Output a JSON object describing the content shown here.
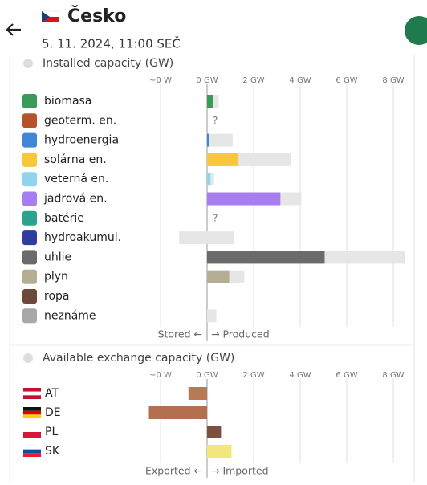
{
  "header": {
    "title": "Česko",
    "datetime": "5. 11. 2024, 11:00 SEČ"
  },
  "production": {
    "title": "Installed capacity (GW)",
    "ticks": [
      {
        "value": -2,
        "label": "~0 W"
      },
      {
        "value": 0,
        "label": "0 GW"
      },
      {
        "value": 2,
        "label": "2 GW"
      },
      {
        "value": 4,
        "label": "4 GW"
      },
      {
        "value": 6,
        "label": "6 GW"
      },
      {
        "value": 8,
        "label": "8 GW"
      }
    ],
    "rows": [
      {
        "name": "biomasa",
        "color": "#3a9a58",
        "value": 0.25,
        "capacity": 0.5
      },
      {
        "name": "geoterm. en.",
        "color": "#b5532b",
        "value": null,
        "value_label": "?"
      },
      {
        "name": "hydroenergia",
        "color": "#3f86d4",
        "value": 0.1,
        "capacity": 1.1
      },
      {
        "name": "solárna en.",
        "color": "#f6c83a",
        "value": 1.35,
        "capacity": 3.6
      },
      {
        "name": "veterná en.",
        "color": "#8fd3ec",
        "value": 0.15,
        "capacity": 0.3
      },
      {
        "name": "jadrová en.",
        "color": "#a77ef2",
        "value": 3.15,
        "capacity": 4.05
      },
      {
        "name": "batérie",
        "color": "#2ba38c",
        "value": null,
        "value_label": "?"
      },
      {
        "name": "hydroakumul.",
        "color": "#2f3d9c",
        "value": 0,
        "storage_capacity": -1.2,
        "capacity": 1.15
      },
      {
        "name": "uhlie",
        "color": "#6b6b6b",
        "value": 5.05,
        "capacity": 8.5
      },
      {
        "name": "plyn",
        "color": "#b5ad94",
        "value": 0.95,
        "capacity": 1.6
      },
      {
        "name": "ropa",
        "color": "#6b4a3a",
        "value": 0,
        "capacity": 0
      },
      {
        "name": "neznáme",
        "color": "#a8a8a8",
        "value": 0,
        "capacity": 0.4
      }
    ],
    "negative_label": "Stored ←",
    "positive_label": "→ Produced"
  },
  "exchange": {
    "title": "Available exchange capacity (GW)",
    "ticks": [
      {
        "value": -2,
        "label": "~0 W"
      },
      {
        "value": 0,
        "label": "0 GW"
      },
      {
        "value": 2,
        "label": "2 GW"
      },
      {
        "value": 4,
        "label": "4 GW"
      },
      {
        "value": 6,
        "label": "6 GW"
      },
      {
        "value": 8,
        "label": "8 GW"
      }
    ],
    "rows": [
      {
        "name": "AT",
        "color": "#b97a52",
        "value": -0.8
      },
      {
        "name": "DE",
        "color": "#b3704f",
        "value": -2.5
      },
      {
        "name": "PL",
        "color": "#7b5040",
        "value": 0.6
      },
      {
        "name": "SK",
        "color": "#f2e77a",
        "value": 1.05
      }
    ],
    "negative_label": "Exported ←",
    "positive_label": "→ Imported"
  }
}
